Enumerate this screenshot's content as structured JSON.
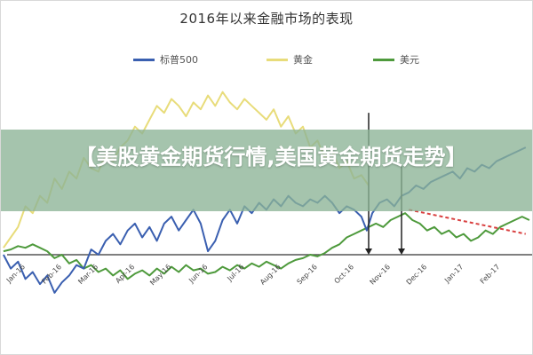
{
  "banner": {
    "title": "【美股黄金期货行情,美国黄金期货走势】"
  },
  "chart_data": {
    "type": "line",
    "title": "2016年以来金融市场的表现",
    "legend_position": "top",
    "grid": false,
    "x_labels": [
      "Jan-16",
      "Feb-16",
      "Mar-16",
      "Apr-16",
      "May-16",
      "Jun-16",
      "Jul-16",
      "Aug-16",
      "Sep-16",
      "Oct-16",
      "Nov-16",
      "Dec-16",
      "Jan-17",
      "Feb-17"
    ],
    "x_range": [
      0,
      14.4
    ],
    "y_range": [
      -20,
      100
    ],
    "markers": [
      {
        "x": 9.9,
        "y_top": 82
      },
      {
        "x": 10.8,
        "y_top": 52
      }
    ],
    "colors": {
      "sp500": "#3a5fb0",
      "gold": "#e8dc7a",
      "usd": "#4e9a3c",
      "trend": "#d94040",
      "marker": "#222222"
    },
    "series": [
      {
        "name": "标普500",
        "key": "sp500",
        "x": [
          -0.1,
          0.1,
          0.3,
          0.5,
          0.7,
          0.9,
          1.1,
          1.3,
          1.5,
          1.7,
          1.9,
          2.1,
          2.3,
          2.5,
          2.7,
          2.9,
          3.1,
          3.3,
          3.5,
          3.7,
          3.9,
          4.1,
          4.3,
          4.5,
          4.7,
          4.9,
          5.1,
          5.3,
          5.5,
          5.7,
          5.9,
          6.1,
          6.3,
          6.5,
          6.7,
          6.9,
          7.1,
          7.3,
          7.5,
          7.7,
          7.9,
          8.1,
          8.3,
          8.5,
          8.7,
          8.9,
          9.1,
          9.3,
          9.5,
          9.7,
          9.85,
          10.0,
          10.2,
          10.4,
          10.6,
          10.8,
          11.0,
          11.2,
          11.4,
          11.6,
          11.8,
          12.0,
          12.2,
          12.4,
          12.6,
          12.8,
          13.0,
          13.2,
          13.4,
          13.6,
          13.8,
          14.0,
          14.2
        ],
        "values": [
          0,
          -8,
          -4,
          -14,
          -10,
          -17,
          -12,
          -22,
          -16,
          -12,
          -6,
          -8,
          3,
          0,
          8,
          12,
          6,
          14,
          18,
          10,
          16,
          8,
          18,
          22,
          14,
          20,
          26,
          18,
          2,
          8,
          20,
          26,
          18,
          28,
          24,
          30,
          26,
          32,
          28,
          34,
          30,
          28,
          32,
          30,
          34,
          30,
          24,
          28,
          26,
          22,
          14,
          24,
          30,
          32,
          28,
          34,
          36,
          40,
          38,
          42,
          44,
          46,
          48,
          44,
          50,
          48,
          52,
          50,
          54,
          56,
          58,
          60,
          62
        ]
      },
      {
        "name": "黄金",
        "key": "gold",
        "x": [
          -0.1,
          0.1,
          0.3,
          0.5,
          0.7,
          0.9,
          1.1,
          1.3,
          1.5,
          1.7,
          1.9,
          2.1,
          2.3,
          2.5,
          2.7,
          2.9,
          3.1,
          3.3,
          3.5,
          3.7,
          3.9,
          4.1,
          4.3,
          4.5,
          4.7,
          4.9,
          5.1,
          5.3,
          5.5,
          5.7,
          5.9,
          6.1,
          6.3,
          6.5,
          6.7,
          6.9,
          7.1,
          7.3,
          7.5,
          7.7,
          7.9,
          8.1,
          8.3,
          8.5,
          8.7,
          8.9,
          9.1,
          9.3,
          9.5,
          9.7,
          9.9
        ],
        "values": [
          4,
          10,
          16,
          28,
          24,
          34,
          30,
          44,
          38,
          48,
          44,
          56,
          50,
          48,
          58,
          54,
          62,
          66,
          74,
          70,
          78,
          86,
          82,
          90,
          86,
          80,
          88,
          84,
          92,
          86,
          94,
          88,
          84,
          90,
          86,
          82,
          78,
          84,
          74,
          80,
          70,
          74,
          62,
          66,
          56,
          60,
          50,
          54,
          44,
          46,
          40
        ]
      },
      {
        "name": "美元",
        "key": "usd",
        "x": [
          -0.1,
          0.1,
          0.3,
          0.5,
          0.7,
          0.9,
          1.1,
          1.3,
          1.5,
          1.7,
          1.9,
          2.1,
          2.3,
          2.5,
          2.7,
          2.9,
          3.1,
          3.3,
          3.5,
          3.7,
          3.9,
          4.1,
          4.3,
          4.5,
          4.7,
          4.9,
          5.1,
          5.3,
          5.5,
          5.7,
          5.9,
          6.1,
          6.3,
          6.5,
          6.7,
          6.9,
          7.1,
          7.3,
          7.5,
          7.7,
          7.9,
          8.1,
          8.3,
          8.5,
          8.7,
          8.9,
          9.1,
          9.3,
          9.5,
          9.7,
          9.9,
          10.1,
          10.3,
          10.5,
          10.7,
          10.9,
          11.1,
          11.3,
          11.5,
          11.7,
          11.9,
          12.1,
          12.3,
          12.5,
          12.7,
          12.9,
          13.1,
          13.3,
          13.5,
          13.7,
          13.9,
          14.1,
          14.3
        ],
        "values": [
          2,
          3,
          5,
          4,
          6,
          4,
          2,
          -2,
          0,
          -5,
          -3,
          -8,
          -6,
          -10,
          -8,
          -12,
          -9,
          -14,
          -11,
          -9,
          -12,
          -8,
          -11,
          -7,
          -10,
          -6,
          -9,
          -8,
          -11,
          -10,
          -7,
          -9,
          -6,
          -8,
          -5,
          -7,
          -4,
          -6,
          -8,
          -5,
          -3,
          -2,
          0,
          -1,
          1,
          4,
          6,
          10,
          12,
          14,
          16,
          18,
          16,
          20,
          22,
          24,
          20,
          18,
          14,
          16,
          12,
          14,
          10,
          12,
          8,
          10,
          14,
          12,
          16,
          18,
          20,
          22,
          20
        ]
      },
      {
        "key": "trend",
        "x": [
          11.0,
          14.2
        ],
        "values": [
          26,
          12
        ]
      }
    ]
  }
}
